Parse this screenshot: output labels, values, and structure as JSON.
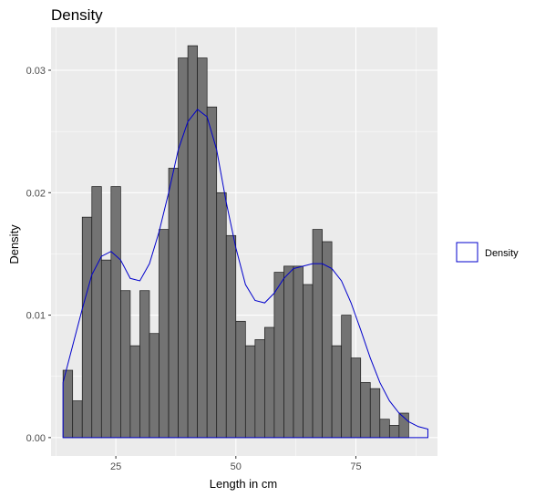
{
  "chart_data": {
    "type": "bar",
    "title": "Density",
    "xlabel": "Length in cm",
    "ylabel": "Density",
    "xlim": [
      11.5,
      92
    ],
    "ylim": [
      -0.0015,
      0.0335
    ],
    "xticks": [
      25,
      50,
      75
    ],
    "yticks": [
      0.0,
      0.01,
      0.02,
      0.03
    ],
    "ytick_labels": [
      "0.00",
      "0.01",
      "0.02",
      "0.03"
    ],
    "grid": true,
    "bins": {
      "start": 14.0,
      "width": 2.0,
      "density": [
        0.0055,
        0.003,
        0.018,
        0.0205,
        0.0145,
        0.0205,
        0.012,
        0.0075,
        0.012,
        0.0085,
        0.017,
        0.022,
        0.031,
        0.032,
        0.031,
        0.027,
        0.02,
        0.0165,
        0.0095,
        0.0075,
        0.008,
        0.009,
        0.0135,
        0.014,
        0.014,
        0.0125,
        0.017,
        0.016,
        0.0075,
        0.01,
        0.0065,
        0.0045,
        0.004,
        0.0015,
        0.001,
        0.002
      ]
    },
    "density_curve": {
      "name": "Density",
      "color": "#0000cc",
      "x": [
        14,
        16,
        18,
        20,
        22,
        24,
        26,
        28,
        30,
        32,
        34,
        36,
        38,
        40,
        42,
        44,
        46,
        48,
        50,
        52,
        54,
        56,
        58,
        60,
        62,
        64,
        66,
        68,
        70,
        72,
        74,
        76,
        78,
        80,
        82,
        84,
        86,
        88,
        90
      ],
      "y": [
        0.0045,
        0.0075,
        0.0105,
        0.0133,
        0.0148,
        0.0152,
        0.0145,
        0.013,
        0.0128,
        0.0142,
        0.0168,
        0.02,
        0.0235,
        0.0258,
        0.0268,
        0.0262,
        0.0235,
        0.0192,
        0.0155,
        0.0125,
        0.0112,
        0.011,
        0.0118,
        0.013,
        0.0138,
        0.014,
        0.0142,
        0.0142,
        0.0138,
        0.0128,
        0.011,
        0.0088,
        0.0065,
        0.0045,
        0.003,
        0.002,
        0.0013,
        0.0009,
        0.0007
      ]
    },
    "legend": {
      "position": "right",
      "entries": [
        "Density"
      ]
    },
    "colors": {
      "panel": "#ebebeb",
      "grid_major": "#ffffff",
      "bar_fill": "#737373",
      "bar_stroke": "#1a1a1a"
    }
  }
}
